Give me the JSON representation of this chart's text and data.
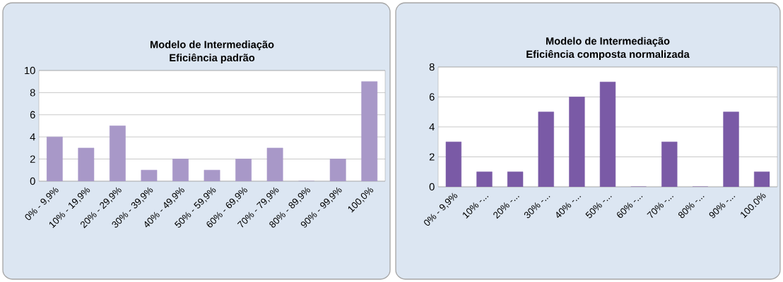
{
  "chart_data": [
    {
      "type": "bar",
      "title": "Modelo de Intermediação",
      "subtitle": "Eficiência padrão",
      "categories": [
        "0% - 9,9%",
        "10% - 19,9%",
        "20% - 29,9%",
        "30% - 39,9%",
        "40% - 49,9%",
        "50% - 59,9%",
        "60% - 69,9%",
        "70% - 79,9%",
        "80% - 89,9%",
        "90% - 99,9%",
        "100,0%"
      ],
      "values": [
        4,
        3,
        5,
        1,
        2,
        1,
        2,
        3,
        0,
        2,
        9
      ],
      "color": "#a898c8",
      "ylim": [
        0,
        10
      ],
      "yticks": [
        0,
        2,
        4,
        6,
        8,
        10
      ],
      "grid": "y"
    },
    {
      "type": "bar",
      "title": "Modelo de Intermediação",
      "subtitle": "Eficiência composta normalizada",
      "categories": [
        "0% - 9,9%",
        "10% -...",
        "20% -...",
        "30% -...",
        "40% -...",
        "50% -...",
        "60% -...",
        "70% -...",
        "80% -...",
        "90% -...",
        "100.0%"
      ],
      "values": [
        3,
        1,
        1,
        5,
        6,
        7,
        0,
        3,
        0,
        5,
        1
      ],
      "color": "#7a5aa6",
      "ylim": [
        0,
        8
      ],
      "yticks": [
        0,
        2,
        4,
        6,
        8
      ],
      "grid": "y"
    }
  ]
}
